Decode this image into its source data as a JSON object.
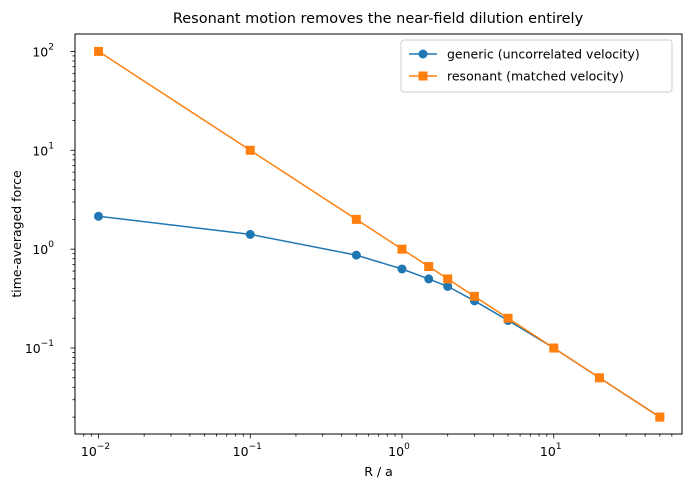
{
  "chart_data": {
    "type": "line",
    "title": "Resonant motion removes the near-field dilution entirely",
    "xlabel": "R / a",
    "ylabel": "time-averaged force",
    "xscale": "log",
    "yscale": "log",
    "xlim": [
      0.007,
      70
    ],
    "ylim": [
      0.0135,
      150
    ],
    "x_ticks": [
      {
        "value": 0.01,
        "base": "10",
        "exp": "−2"
      },
      {
        "value": 0.1,
        "base": "10",
        "exp": "−1"
      },
      {
        "value": 1,
        "base": "10",
        "exp": "0"
      },
      {
        "value": 10,
        "base": "10",
        "exp": "1"
      }
    ],
    "y_ticks": [
      {
        "value": 0.1,
        "base": "10",
        "exp": "−1"
      },
      {
        "value": 1,
        "base": "10",
        "exp": "0"
      },
      {
        "value": 10,
        "base": "10",
        "exp": "1"
      },
      {
        "value": 100,
        "base": "10",
        "exp": "2"
      }
    ],
    "grid": false,
    "legend_position": "top-right",
    "series": [
      {
        "name": "generic (uncorrelated velocity)",
        "color": "#1f77b4",
        "marker": "circle",
        "x": [
          0.01,
          0.1,
          0.5,
          1,
          1.5,
          2,
          3,
          5,
          10,
          20,
          50
        ],
        "y": [
          2.15,
          1.41,
          0.87,
          0.63,
          0.5,
          0.42,
          0.3,
          0.19,
          0.1,
          0.05,
          0.02
        ]
      },
      {
        "name": "resonant (matched velocity)",
        "color": "#ff7f0e",
        "marker": "square",
        "x": [
          0.01,
          0.1,
          0.5,
          1,
          1.5,
          2,
          3,
          5,
          10,
          20,
          50
        ],
        "y": [
          100,
          10,
          2,
          1,
          0.667,
          0.5,
          0.333,
          0.2,
          0.1,
          0.05,
          0.02
        ]
      }
    ]
  }
}
